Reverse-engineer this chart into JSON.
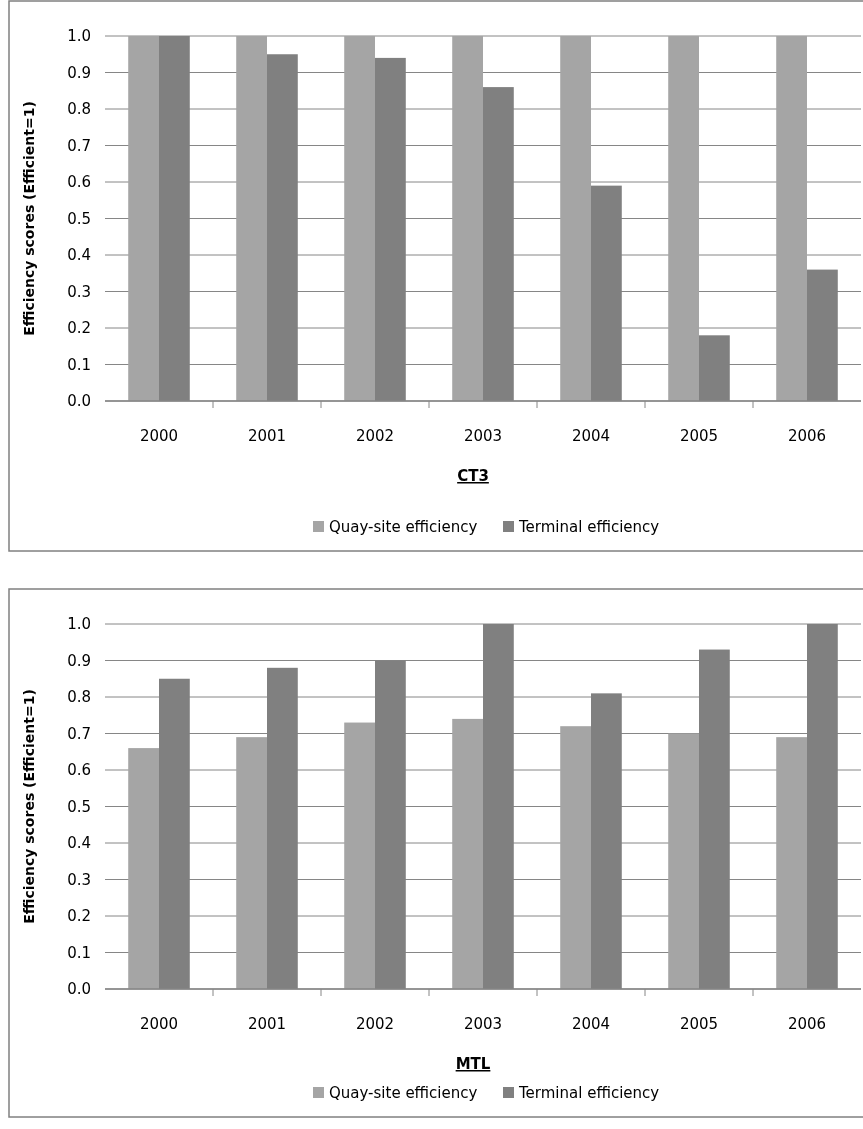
{
  "chart_data": [
    {
      "type": "bar",
      "title": "CT3",
      "ylabel": "Efficiency scores (Efficient=1)",
      "categories": [
        "2000",
        "2001",
        "2002",
        "2003",
        "2004",
        "2005",
        "2006"
      ],
      "series": [
        {
          "name": "Quay-site efficiency",
          "color": "#a5a5a5",
          "values": [
            1.0,
            1.0,
            1.0,
            1.0,
            1.0,
            1.0,
            1.0
          ]
        },
        {
          "name": "Terminal efficiency",
          "color": "#808080",
          "values": [
            1.0,
            0.95,
            0.94,
            0.86,
            0.59,
            0.18,
            0.36
          ]
        }
      ],
      "ylim": [
        0,
        1
      ],
      "yticks": [
        {
          "value": 0,
          "label": "0.0"
        },
        {
          "value": 0.1,
          "label": "0.1"
        },
        {
          "value": 0.2,
          "label": "0.2"
        },
        {
          "value": 0.3,
          "label": "0.3"
        },
        {
          "value": 0.4,
          "label": "0.4"
        },
        {
          "value": 0.5,
          "label": "0.5"
        },
        {
          "value": 0.6,
          "label": "0.6"
        },
        {
          "value": 0.7,
          "label": "0.7"
        },
        {
          "value": 0.8,
          "label": "0.8"
        },
        {
          "value": 0.9,
          "label": "0.9"
        },
        {
          "value": 1,
          "label": "1.0"
        }
      ],
      "grid": "y",
      "legend": "bottom"
    },
    {
      "type": "bar",
      "title": "MTL",
      "ylabel": "Efficiency scores (Efficient=1)",
      "categories": [
        "2000",
        "2001",
        "2002",
        "2003",
        "2004",
        "2005",
        "2006"
      ],
      "series": [
        {
          "name": "Quay-site efficiency",
          "color": "#a5a5a5",
          "values": [
            0.66,
            0.69,
            0.73,
            0.74,
            0.72,
            0.7,
            0.69
          ]
        },
        {
          "name": "Terminal efficiency",
          "color": "#808080",
          "values": [
            0.85,
            0.88,
            0.9,
            1.0,
            0.81,
            0.93,
            1.0
          ]
        }
      ],
      "ylim": [
        0,
        1
      ],
      "yticks": [
        {
          "value": 0,
          "label": "0.0"
        },
        {
          "value": 0.1,
          "label": "0.1"
        },
        {
          "value": 0.2,
          "label": "0.2"
        },
        {
          "value": 0.3,
          "label": "0.3"
        },
        {
          "value": 0.4,
          "label": "0.4"
        },
        {
          "value": 0.5,
          "label": "0.5"
        },
        {
          "value": 0.6,
          "label": "0.6"
        },
        {
          "value": 0.7,
          "label": "0.7"
        },
        {
          "value": 0.8,
          "label": "0.8"
        },
        {
          "value": 0.9,
          "label": "0.9"
        },
        {
          "value": 1,
          "label": "1.0"
        }
      ],
      "grid": "y",
      "legend": "bottom"
    }
  ]
}
